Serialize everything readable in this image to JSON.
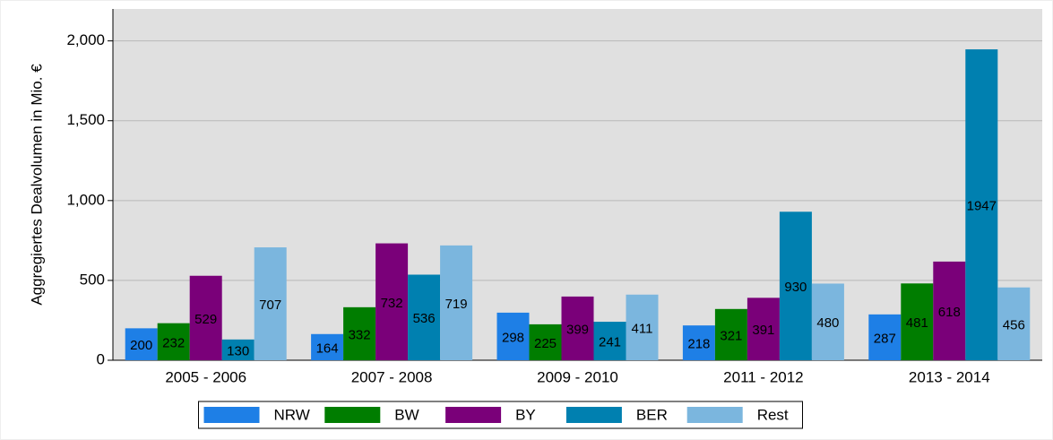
{
  "chart_data": {
    "type": "grouped_bar",
    "y_label": "Aggregiertes Dealvolumen in Mio. €",
    "categories": [
      "2005 - 2006",
      "2007 - 2008",
      "2009 - 2010",
      "2011 - 2012",
      "2013 - 2014"
    ],
    "series": [
      {
        "name": "NRW",
        "color": "#1e7fe6",
        "values": [
          200,
          164,
          298,
          218,
          287
        ]
      },
      {
        "name": "BW",
        "color": "#007d00",
        "values": [
          232,
          332,
          225,
          321,
          481
        ]
      },
      {
        "name": "BY",
        "color": "#7a0079",
        "values": [
          529,
          732,
          399,
          391,
          618
        ]
      },
      {
        "name": "BER",
        "color": "#0080b0",
        "values": [
          130,
          536,
          241,
          930,
          1947
        ]
      },
      {
        "name": "Rest",
        "color": "#7bb6de",
        "values": [
          707,
          719,
          411,
          480,
          456
        ]
      }
    ],
    "ylim": [
      0,
      2200
    ],
    "yticks": [
      0,
      500,
      {
        "value": 1000,
        "label": "1,000"
      },
      {
        "value": 1500,
        "label": "1,500"
      },
      {
        "value": 2000,
        "label": "2,000"
      }
    ],
    "grid": true,
    "legend": "bottom"
  }
}
